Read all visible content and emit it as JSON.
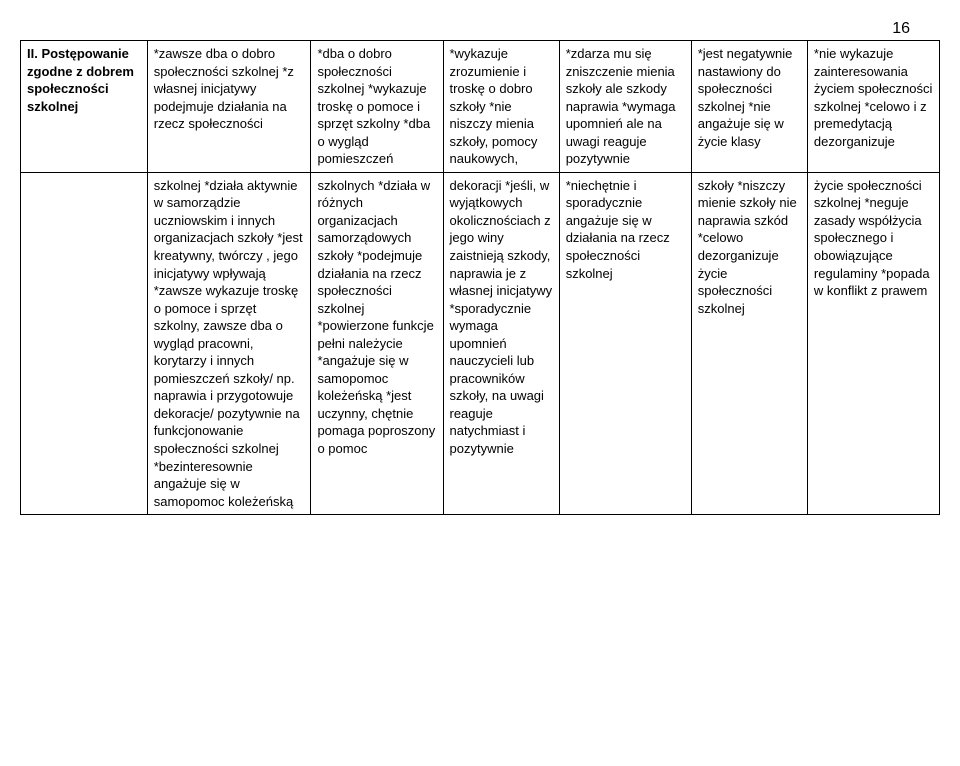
{
  "page_number": "16",
  "row1": {
    "c0": "II. Postępowanie zgodne z dobrem społeczności szkolnej",
    "c1": "*zawsze dba o dobro społeczności szkolnej *z własnej inicjatywy podejmuje działania na rzecz społeczności",
    "c2": "*dba o dobro społeczności szkolnej *wykazuje troskę o pomoce i sprzęt szkolny *dba o wygląd pomieszczeń",
    "c3": "*wykazuje zrozumienie i troskę o dobro szkoły *nie niszczy mienia szkoły, pomocy naukowych,",
    "c4": "*zdarza mu się zniszczenie mienia szkoły ale szkody naprawia *wymaga upomnień ale na uwagi reaguje pozytywnie",
    "c5": "*jest negatywnie nastawiony do społeczności szkolnej *nie angażuje się w życie klasy",
    "c6": "*nie wykazuje zainteresowania życiem społeczności szkolnej *celowo i z premedytacją dezorganizuje"
  },
  "row2": {
    "c0": "",
    "c1": "szkolnej\n*działa aktywnie w samorządzie uczniowskim i innych organizacjach szkoły *jest kreatywny, twórczy , jego inicjatywy wpływają *zawsze wykazuje troskę o pomoce i sprzęt szkolny, zawsze dba o wygląd pracowni, korytarzy i innych pomieszczeń szkoły/ np. naprawia i przygotowuje dekoracje/ pozytywnie na funkcjonowanie społeczności szkolnej *bezinteresownie angażuje się w samopomoc koleżeńską",
    "c2": "szkolnych\n*działa w różnych organizacjach samorządowych szkoły *podejmuje działania na rzecz społeczności szkolnej *powierzone funkcje pełni należycie *angażuje się w samopomoc koleżeńską *jest uczynny, chętnie pomaga poproszony o pomoc",
    "c3": "dekoracji\n*jeśli, w wyjątkowych okolicznościach z jego winy zaistnieją szkody, naprawia je z własnej inicjatywy *sporadycznie wymaga upomnień nauczycieli lub pracowników szkoły, na uwagi reaguje natychmiast i pozytywnie",
    "c4": "*niechętnie i sporadycznie angażuje się w działania na rzecz społeczności szkolnej",
    "c5": "szkoły\n*niszczy mienie szkoły nie naprawia szkód *celowo dezorganizuje życie społeczności szkolnej",
    "c6": "życie społeczności szkolnej\n*neguje zasady współżycia społecznego i obowiązujące regulaminy *popada w konflikt z prawem"
  }
}
